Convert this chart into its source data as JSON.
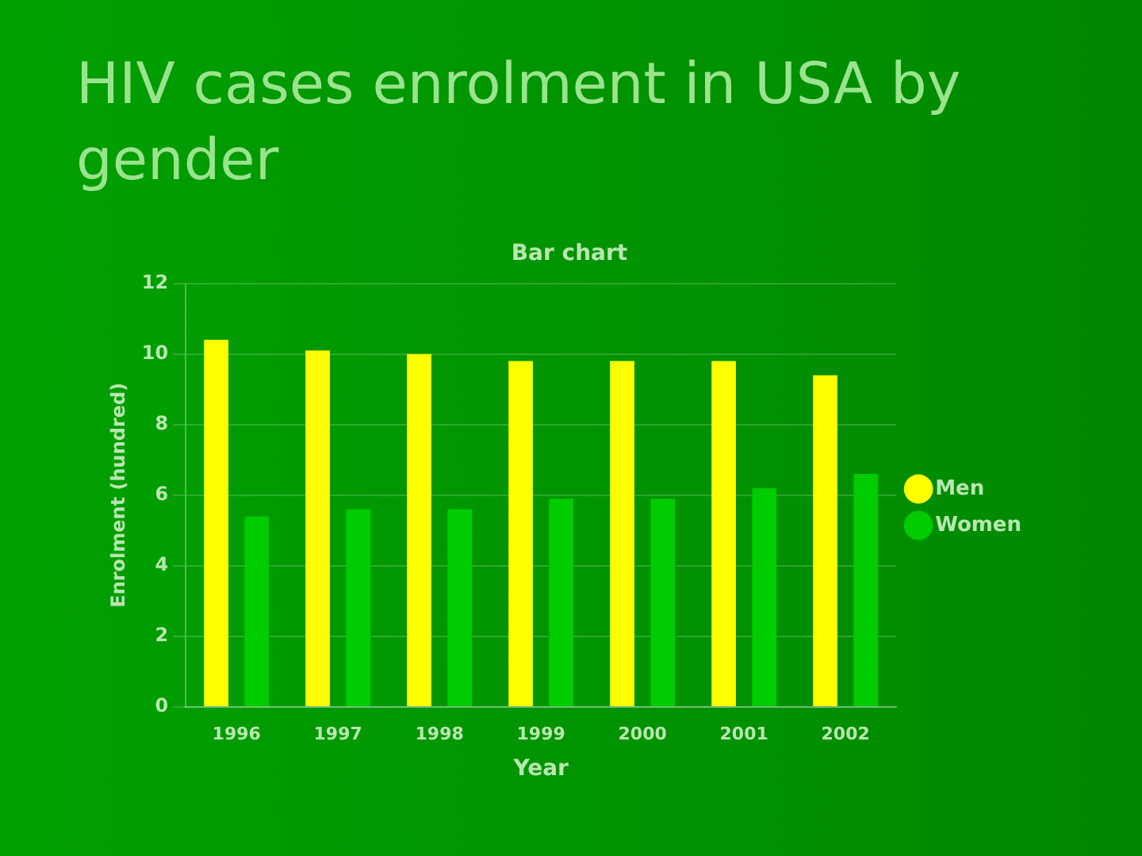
{
  "chart_data": {
    "type": "bar",
    "title": "HIV cases enrolment in USA by gender",
    "subtitle": "Bar chart",
    "xlabel": "Year",
    "ylabel": "Enrolment (hundred)",
    "categories": [
      "1996",
      "1997",
      "1998",
      "1999",
      "2000",
      "2001",
      "2002"
    ],
    "series": [
      {
        "name": "Men",
        "color": "#ffff00",
        "values": [
          10.4,
          10.1,
          10,
          9.8,
          9.8,
          9.8,
          9.4
        ]
      },
      {
        "name": "Women",
        "color": "#00cc00",
        "values": [
          5.4,
          5.6,
          5.6,
          5.9,
          5.9,
          6.2,
          6.6
        ]
      }
    ],
    "ylim": [
      0,
      12
    ],
    "yticks": [
      0,
      2,
      4,
      6,
      8,
      10,
      12
    ],
    "grid": "y",
    "legend": "right"
  }
}
